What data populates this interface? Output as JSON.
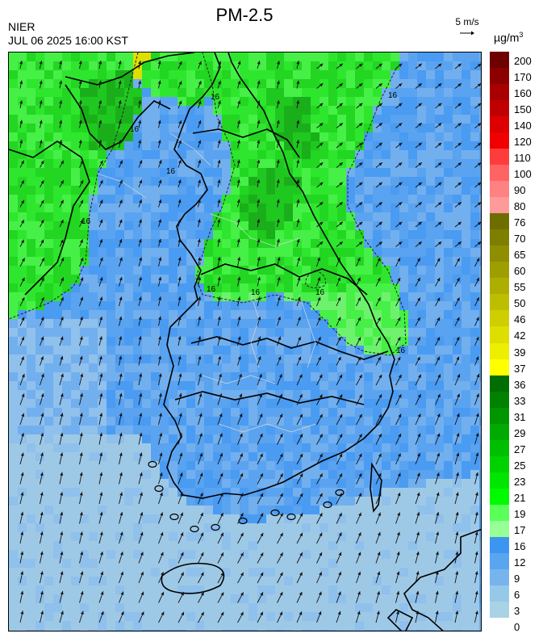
{
  "header": {
    "title": "PM-2.5",
    "organization": "NIER",
    "timestamp": "JUL 06 2025 16:00 KST",
    "wind_reference": "5 m/s",
    "unit_base": "µg/m",
    "unit_exp": "3"
  },
  "legend": {
    "labels": [
      "200",
      "170",
      "160",
      "150",
      "140",
      "120",
      "110",
      "100",
      "90",
      "80",
      "76",
      "70",
      "65",
      "60",
      "55",
      "50",
      "46",
      "42",
      "39",
      "37",
      "36",
      "33",
      "31",
      "29",
      "27",
      "25",
      "23",
      "21",
      "19",
      "17",
      "16",
      "12",
      "9",
      "6",
      "3",
      "0"
    ],
    "colors": [
      "#6e0000",
      "#8c0000",
      "#a80000",
      "#c00000",
      "#dc0000",
      "#f00000",
      "#ff3c3c",
      "#ff6464",
      "#ff8282",
      "#ff9a9a",
      "#6e6e00",
      "#7e7e00",
      "#8e8e00",
      "#9e9e00",
      "#aeae00",
      "#bebe00",
      "#cece00",
      "#dede00",
      "#eeee00",
      "#ffff00",
      "#006e00",
      "#008200",
      "#009600",
      "#00aa00",
      "#00be00",
      "#00d200",
      "#00e600",
      "#00fa00",
      "#5aff5a",
      "#96ff96",
      "#3c96f0",
      "#5aa5f0",
      "#78b4ec",
      "#96c8e8",
      "#aad2e6"
    ]
  },
  "map": {
    "contour_labels": [
      "16",
      "16",
      "16",
      "16",
      "16",
      "16",
      "16",
      "16",
      "16"
    ],
    "concentration_bands": [
      "0-3",
      "3-6",
      "6-9",
      "9-12",
      "12-16",
      "16-17",
      "17-19",
      "19-21",
      "21-23",
      "23-25",
      "25-27",
      "27-29",
      "29-31",
      "31-33",
      "36-37"
    ]
  }
}
